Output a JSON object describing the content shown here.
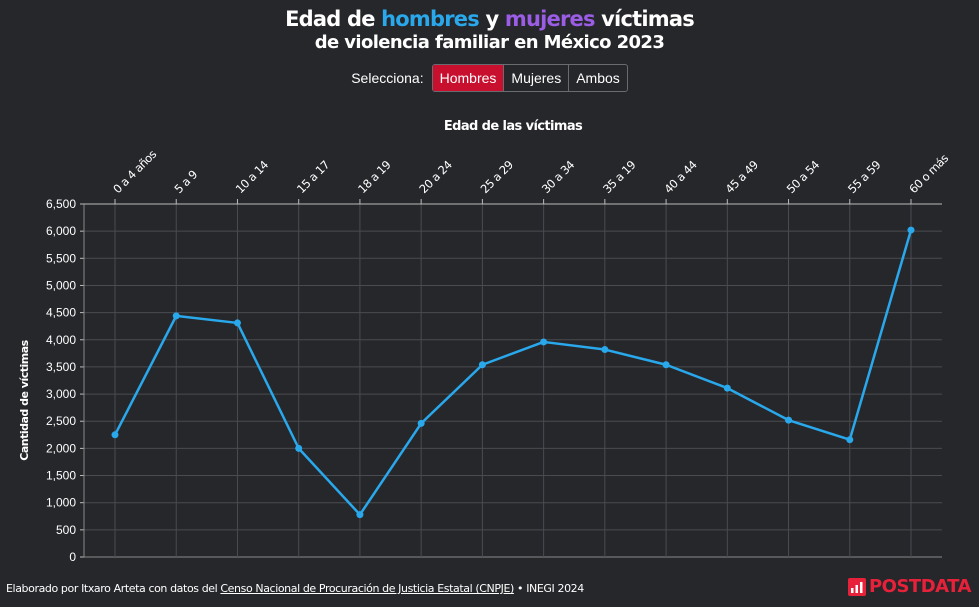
{
  "header": {
    "title_parts": [
      "Edad de ",
      "hombres",
      " y ",
      "mujeres",
      " víctimas"
    ],
    "subtitle": "de violencia familiar en México 2023"
  },
  "colors": {
    "men": "#29a8ec",
    "women": "#9b5de5",
    "active_button": "#c8102e",
    "brand": "#e8213a"
  },
  "selector": {
    "label": "Selecciona:",
    "options": [
      "Hombres",
      "Mujeres",
      "Ambos"
    ],
    "selected": "Hombres"
  },
  "chart_data": {
    "type": "line",
    "xlabel": "Edad de las víctimas",
    "ylabel": "Cantidad de víctimas",
    "categories": [
      "0 a 4 años",
      "5 a 9",
      "10 a 14",
      "15 a 17",
      "18 a 19",
      "20 a 24",
      "25 a 29",
      "30 a 34",
      "35 a 19",
      "40 a 44",
      "45 a 49",
      "50 a 54",
      "55 a 59",
      "60 o más"
    ],
    "series": [
      {
        "name": "Hombres",
        "values": [
          2250,
          4440,
          4310,
          2000,
          780,
          2460,
          3540,
          3960,
          3820,
          3540,
          3110,
          2520,
          2160,
          6020
        ]
      }
    ],
    "ylim": [
      0,
      6500
    ],
    "yticks": [
      "0",
      "500",
      "1,000",
      "1,500",
      "2,000",
      "2,500",
      "3,000",
      "3,500",
      "4,000",
      "4,500",
      "5,000",
      "5,500",
      "6,000",
      "6,500"
    ],
    "grid": true
  },
  "footer": {
    "prefix": "Elaborado por Itxaro Arteta con datos del ",
    "link": "Censo Nacional de Procuración de Justicia Estatal (CNPJE)",
    "suffix": " • INEGI 2024"
  },
  "brand": {
    "name": "POSTDATA"
  }
}
